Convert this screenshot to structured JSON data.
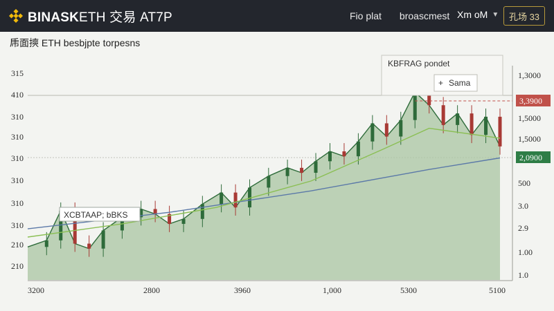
{
  "header": {
    "brand_strong": "BINASK",
    "brand_rest": "ETH 交易 AT7P",
    "nav": [
      "Fio plat",
      "broascmest"
    ],
    "account": "Xm  oM",
    "badge": "孔场 33"
  },
  "subtitle": "乕面摤 ETH  besbjpte torpesns",
  "legend_box": {
    "label": "KBFRAG pondet",
    "item": "Sama"
  },
  "left_callout": "XCBTAAP; bBKS",
  "colors": {
    "up": "#2e6b3a",
    "down": "#a83a35",
    "area_fill": "#a9c6a2",
    "ma_blue": "#5b79a8",
    "ma_green": "#8bbf54",
    "tag_red": "#c0514a",
    "tag_green": "#2e7d46"
  },
  "chart_data": {
    "type": "line",
    "title": "",
    "y_left_labels": [
      "315",
      "410",
      "310",
      "310",
      "310",
      "310",
      "310",
      "310",
      "210",
      "210"
    ],
    "y_right_labels": [
      "1,3000",
      "1,5000",
      "1,5000",
      "500",
      "3.0",
      "2.9",
      "1.00",
      "1.0"
    ],
    "x_labels": [
      "3200",
      "2800",
      "3960",
      "1,000",
      "5300",
      "5100"
    ],
    "price_tags": [
      {
        "label": "3,3900",
        "color": "red"
      },
      {
        "label": "2,0900",
        "color": "green"
      }
    ],
    "price_series": [
      {
        "x": 0,
        "close": 2.0
      },
      {
        "x": 4,
        "close": 2.4
      },
      {
        "x": 7,
        "close": 4.2
      },
      {
        "x": 10,
        "close": 2.2
      },
      {
        "x": 13,
        "close": 1.9
      },
      {
        "x": 16,
        "close": 3.0
      },
      {
        "x": 20,
        "close": 3.8
      },
      {
        "x": 24,
        "close": 4.3
      },
      {
        "x": 27,
        "close": 4.0
      },
      {
        "x": 30,
        "close": 3.4
      },
      {
        "x": 33,
        "close": 3.7
      },
      {
        "x": 37,
        "close": 4.6
      },
      {
        "x": 41,
        "close": 5.3
      },
      {
        "x": 44,
        "close": 4.4
      },
      {
        "x": 47,
        "close": 5.6
      },
      {
        "x": 51,
        "close": 6.3
      },
      {
        "x": 55,
        "close": 6.8
      },
      {
        "x": 58,
        "close": 6.5
      },
      {
        "x": 61,
        "close": 7.2
      },
      {
        "x": 64,
        "close": 7.8
      },
      {
        "x": 67,
        "close": 7.5
      },
      {
        "x": 70,
        "close": 8.4
      },
      {
        "x": 73,
        "close": 9.5
      },
      {
        "x": 76,
        "close": 8.7
      },
      {
        "x": 79,
        "close": 9.7
      },
      {
        "x": 82,
        "close": 11.4
      },
      {
        "x": 85,
        "close": 10.6
      },
      {
        "x": 88,
        "close": 9.4
      },
      {
        "x": 91,
        "close": 10.1
      },
      {
        "x": 94,
        "close": 8.8
      },
      {
        "x": 97,
        "close": 9.9
      },
      {
        "x": 100,
        "close": 8.1
      }
    ],
    "ma_slow": [
      {
        "x": 0,
        "v": 3.1
      },
      {
        "x": 30,
        "v": 4.1
      },
      {
        "x": 60,
        "v": 5.4
      },
      {
        "x": 85,
        "v": 6.7
      },
      {
        "x": 100,
        "v": 7.4
      }
    ],
    "ma_fast": [
      {
        "x": 0,
        "v": 2.6
      },
      {
        "x": 20,
        "v": 3.4
      },
      {
        "x": 40,
        "v": 4.4
      },
      {
        "x": 60,
        "v": 6.0
      },
      {
        "x": 75,
        "v": 7.9
      },
      {
        "x": 85,
        "v": 9.2
      },
      {
        "x": 100,
        "v": 8.6
      }
    ],
    "x_range": [
      0,
      100
    ],
    "y_range": [
      0,
      13
    ],
    "grid": false
  }
}
